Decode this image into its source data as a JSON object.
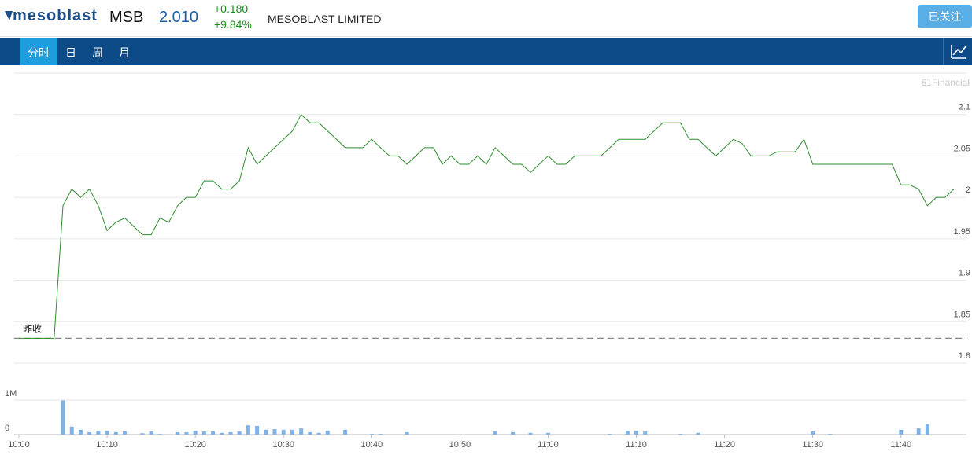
{
  "header": {
    "logo": "mesoblast",
    "symbol": "MSB",
    "price": "2.010",
    "change": "+0.180",
    "change_pct": "+9.84%",
    "name": "MESOBLAST LIMITED",
    "follow_button": "已关注"
  },
  "tabs": [
    "分时",
    "日",
    "周",
    "月"
  ],
  "watermark": "61Financial",
  "chart_data": [
    {
      "type": "line",
      "color": "#2e8b2e",
      "prev_close": 1.83,
      "prev_close_label": "昨收",
      "grid": true,
      "ylim": [
        1.8,
        2.15
      ],
      "yticks": [
        2.1,
        2.05,
        2,
        1.95,
        1.9,
        1.85,
        1.8
      ],
      "xlim": [
        "10:00",
        "11:46"
      ],
      "xticks": [
        "10:00",
        "10:10",
        "10:20",
        "10:30",
        "10:40",
        "10:50",
        "11:00",
        "11:10",
        "11:20",
        "11:30",
        "11:40"
      ],
      "x": [
        "10:00",
        "10:01",
        "10:02",
        "10:03",
        "10:04",
        "10:05",
        "10:06",
        "10:07",
        "10:08",
        "10:09",
        "10:10",
        "10:11",
        "10:12",
        "10:13",
        "10:14",
        "10:15",
        "10:16",
        "10:17",
        "10:18",
        "10:19",
        "10:20",
        "10:21",
        "10:22",
        "10:23",
        "10:24",
        "10:25",
        "10:26",
        "10:27",
        "10:28",
        "10:29",
        "10:30",
        "10:31",
        "10:32",
        "10:33",
        "10:34",
        "10:35",
        "10:36",
        "10:37",
        "10:38",
        "10:39",
        "10:40",
        "10:41",
        "10:42",
        "10:43",
        "10:44",
        "10:45",
        "10:46",
        "10:47",
        "10:48",
        "10:49",
        "10:50",
        "10:51",
        "10:52",
        "10:53",
        "10:54",
        "10:55",
        "10:56",
        "10:57",
        "10:58",
        "10:59",
        "11:00",
        "11:01",
        "11:02",
        "11:03",
        "11:04",
        "11:05",
        "11:06",
        "11:07",
        "11:08",
        "11:09",
        "11:10",
        "11:11",
        "11:12",
        "11:13",
        "11:14",
        "11:15",
        "11:16",
        "11:17",
        "11:18",
        "11:19",
        "11:20",
        "11:21",
        "11:22",
        "11:23",
        "11:24",
        "11:25",
        "11:26",
        "11:27",
        "11:28",
        "11:29",
        "11:30",
        "11:31",
        "11:32",
        "11:33",
        "11:34",
        "11:35",
        "11:36",
        "11:37",
        "11:38",
        "11:39",
        "11:40",
        "11:41",
        "11:42",
        "11:43",
        "11:44",
        "11:45",
        "11:46"
      ],
      "values": [
        1.83,
        1.83,
        1.83,
        1.83,
        1.83,
        1.99,
        2.01,
        2.0,
        2.01,
        1.99,
        1.96,
        1.97,
        1.975,
        1.965,
        1.955,
        1.955,
        1.975,
        1.97,
        1.99,
        2.0,
        2.0,
        2.02,
        2.02,
        2.01,
        2.01,
        2.02,
        2.06,
        2.04,
        2.05,
        2.06,
        2.07,
        2.08,
        2.1,
        2.09,
        2.09,
        2.08,
        2.07,
        2.06,
        2.06,
        2.06,
        2.07,
        2.06,
        2.05,
        2.05,
        2.04,
        2.05,
        2.06,
        2.06,
        2.04,
        2.05,
        2.04,
        2.04,
        2.05,
        2.04,
        2.06,
        2.05,
        2.04,
        2.04,
        2.03,
        2.04,
        2.05,
        2.04,
        2.04,
        2.05,
        2.05,
        2.05,
        2.05,
        2.06,
        2.07,
        2.07,
        2.07,
        2.07,
        2.08,
        2.09,
        2.09,
        2.09,
        2.07,
        2.07,
        2.06,
        2.05,
        2.06,
        2.07,
        2.065,
        2.05,
        2.05,
        2.05,
        2.055,
        2.055,
        2.055,
        2.07,
        2.04,
        2.04,
        2.04,
        2.04,
        2.04,
        2.04,
        2.04,
        2.04,
        2.04,
        2.04,
        2.015,
        2.015,
        2.01,
        1.99,
        2.0,
        2.0,
        2.01
      ]
    },
    {
      "type": "bar",
      "color": "#7fb3e8",
      "ylim": [
        0,
        2000000
      ],
      "yticks": [
        0,
        {
          "value": 1000000,
          "label": "1M"
        }
      ],
      "xlim": [
        "10:00",
        "11:46"
      ],
      "x": [
        "10:00",
        "10:01",
        "10:02",
        "10:03",
        "10:04",
        "10:05",
        "10:06",
        "10:07",
        "10:08",
        "10:09",
        "10:10",
        "10:11",
        "10:12",
        "10:13",
        "10:14",
        "10:15",
        "10:16",
        "10:17",
        "10:18",
        "10:19",
        "10:20",
        "10:21",
        "10:22",
        "10:23",
        "10:24",
        "10:25",
        "10:26",
        "10:27",
        "10:28",
        "10:29",
        "10:30",
        "10:31",
        "10:32",
        "10:33",
        "10:34",
        "10:35",
        "10:36",
        "10:37",
        "10:38",
        "10:39",
        "10:40",
        "10:41",
        "10:42",
        "10:43",
        "10:44",
        "10:45",
        "10:46",
        "10:47",
        "10:48",
        "10:49",
        "10:50",
        "10:51",
        "10:52",
        "10:53",
        "10:54",
        "10:55",
        "10:56",
        "10:57",
        "10:58",
        "10:59",
        "11:00",
        "11:01",
        "11:02",
        "11:03",
        "11:04",
        "11:05",
        "11:06",
        "11:07",
        "11:08",
        "11:09",
        "11:10",
        "11:11",
        "11:12",
        "11:13",
        "11:14",
        "11:15",
        "11:16",
        "11:17",
        "11:18",
        "11:19",
        "11:20",
        "11:21",
        "11:22",
        "11:23",
        "11:24",
        "11:25",
        "11:26",
        "11:27",
        "11:28",
        "11:29",
        "11:30",
        "11:31",
        "11:32",
        "11:33",
        "11:34",
        "11:35",
        "11:36",
        "11:37",
        "11:38",
        "11:39",
        "11:40",
        "11:41",
        "11:42",
        "11:43",
        "11:44",
        "11:45",
        "11:46"
      ],
      "values": [
        0,
        0,
        0,
        0,
        0,
        990000,
        230000,
        140000,
        70000,
        110000,
        110000,
        70000,
        90000,
        0,
        40000,
        90000,
        20000,
        0,
        70000,
        70000,
        110000,
        90000,
        90000,
        50000,
        70000,
        90000,
        270000,
        250000,
        140000,
        160000,
        140000,
        140000,
        180000,
        70000,
        50000,
        110000,
        0,
        140000,
        0,
        0,
        20000,
        20000,
        0,
        0,
        70000,
        0,
        0,
        0,
        0,
        0,
        0,
        0,
        0,
        0,
        90000,
        0,
        70000,
        0,
        50000,
        0,
        50000,
        0,
        0,
        0,
        0,
        0,
        0,
        20000,
        0,
        110000,
        110000,
        90000,
        0,
        0,
        0,
        20000,
        0,
        50000,
        0,
        0,
        0,
        0,
        0,
        0,
        0,
        0,
        0,
        0,
        0,
        0,
        90000,
        0,
        20000,
        0,
        0,
        0,
        0,
        0,
        0,
        0,
        140000,
        0,
        180000,
        300000,
        0,
        0,
        0
      ]
    }
  ]
}
